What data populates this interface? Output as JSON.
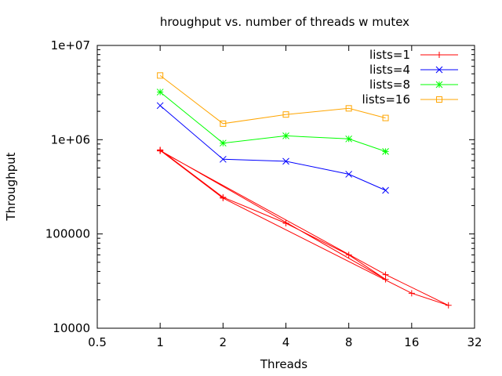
{
  "chart_data": {
    "type": "line",
    "title": "hroughput vs. number of threads w mutex",
    "xlabel": "Threads",
    "ylabel": "Throughput",
    "xscale": "log2",
    "yscale": "log10",
    "xlim": [
      0.5,
      32
    ],
    "ylim": [
      10000,
      10000000
    ],
    "xticks": [
      0.5,
      1,
      2,
      4,
      8,
      16,
      32
    ],
    "xtick_labels": [
      "0.5",
      "1",
      "2",
      "4",
      "8",
      "16",
      "32"
    ],
    "yticks": [
      10000,
      100000,
      1000000,
      10000000
    ],
    "ytick_labels": [
      "10000",
      "100000",
      "1e+06",
      "1e+07"
    ],
    "legend_position": "top-right",
    "grid": false,
    "series": [
      {
        "name": "lists=1",
        "color": "#ff0000",
        "marker": "plus",
        "points": [
          [
            1,
            780000
          ],
          [
            2,
            245000
          ],
          [
            4,
            130000
          ],
          [
            8,
            60000
          ],
          [
            12,
            33000
          ],
          [
            1,
            770000
          ],
          [
            2,
            240000
          ],
          [
            16,
            23500
          ],
          [
            24,
            17500
          ],
          [
            12,
            37000
          ],
          [
            1,
            760000
          ]
        ]
      },
      {
        "name": "lists=4",
        "color": "#0000ff",
        "marker": "x",
        "points": [
          [
            1,
            2300000
          ],
          [
            2,
            620000
          ],
          [
            4,
            590000
          ],
          [
            8,
            430000
          ],
          [
            12,
            290000
          ]
        ]
      },
      {
        "name": "lists=8",
        "color": "#00ff00",
        "marker": "star",
        "points": [
          [
            1,
            3200000
          ],
          [
            2,
            920000
          ],
          [
            4,
            1100000
          ],
          [
            8,
            1020000
          ],
          [
            12,
            750000
          ]
        ]
      },
      {
        "name": "lists=16",
        "color": "#ffa500",
        "marker": "square",
        "points": [
          [
            1,
            4800000
          ],
          [
            2,
            1480000
          ],
          [
            4,
            1850000
          ],
          [
            8,
            2150000
          ],
          [
            12,
            1700000
          ]
        ]
      }
    ]
  }
}
